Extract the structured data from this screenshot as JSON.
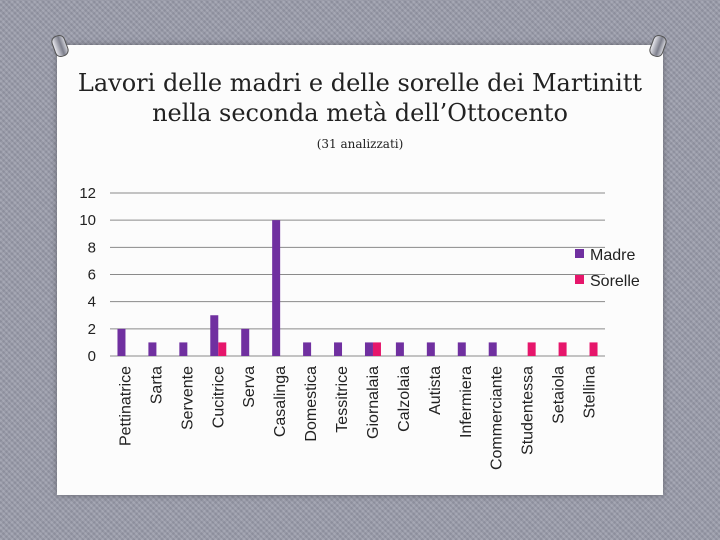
{
  "title_line1": "Lavori delle madri e delle sorelle dei Martinitt",
  "title_line2": "nella seconda metà dell’Ottocento",
  "subtitle": "(31 analizzati)",
  "chart_data": {
    "type": "bar",
    "categories": [
      "Pettinatrice",
      "Sarta",
      "Servente",
      "Cucitrice",
      "Serva",
      "Casalinga",
      "Domestica",
      "Tessitrice",
      "Giornalaia",
      "Calzolaia",
      "Autista",
      "Infermiera",
      "Commerciante",
      "Studentessa",
      "Setaiola",
      "Stellina"
    ],
    "series": [
      {
        "name": "Madre",
        "color": "#7030a0",
        "values": [
          2,
          1,
          1,
          3,
          2,
          10,
          1,
          1,
          1,
          1,
          1,
          1,
          1,
          0,
          0,
          0
        ]
      },
      {
        "name": "Sorelle",
        "color": "#e6166b",
        "values": [
          0,
          0,
          0,
          1,
          0,
          0,
          0,
          0,
          1,
          0,
          0,
          0,
          0,
          1,
          1,
          1
        ]
      }
    ],
    "ylim": [
      0,
      12
    ],
    "yticks": [
      0,
      2,
      4,
      6,
      8,
      10,
      12
    ],
    "grid": true,
    "legend": "right"
  }
}
